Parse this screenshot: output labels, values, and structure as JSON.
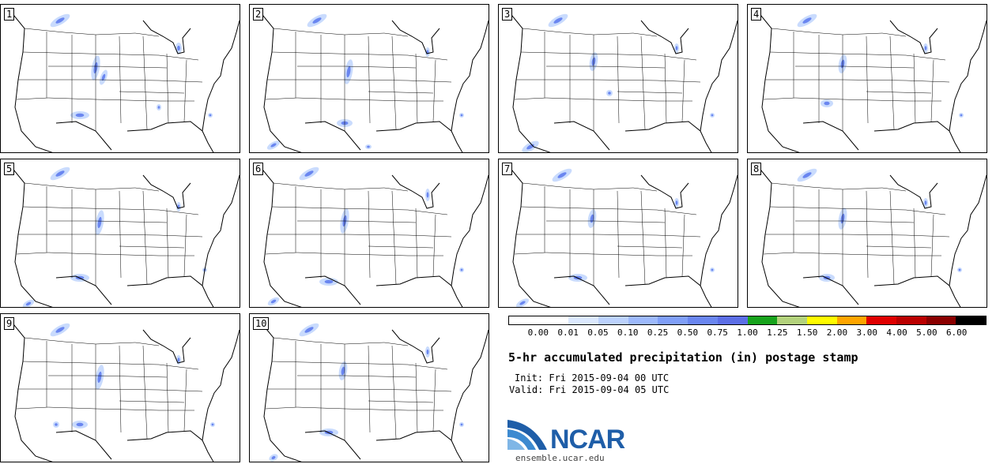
{
  "chart_data": {
    "type": "heatmap",
    "title": "5-hr accumulated precipitation (in) postage stamp",
    "init": "Fri 2015-09-04 00 UTC",
    "valid": "Fri 2015-09-04 05 UTC",
    "members": [
      "1",
      "2",
      "3",
      "4",
      "5",
      "6",
      "7",
      "8",
      "9",
      "10"
    ],
    "units": "in",
    "colorbar": {
      "ticks": [
        "0.00",
        "0.01",
        "0.05",
        "0.10",
        "0.25",
        "0.50",
        "0.75",
        "1.00",
        "1.25",
        "1.50",
        "2.00",
        "3.00",
        "4.00",
        "5.00",
        "6.00"
      ],
      "colors": [
        "#ffffff",
        "#ffffff",
        "#dce9fe",
        "#bcd2fd",
        "#9db9fc",
        "#809ff8",
        "#6a86f0",
        "#5c6ee6",
        "#17a31c",
        "#b3d27c",
        "#fffb00",
        "#ffa500",
        "#e00000",
        "#bb0000",
        "#8b0000",
        "#000000"
      ]
    }
  },
  "labels": {
    "init_prefix": "Init:",
    "valid_prefix": "Valid:",
    "logo": "NCAR",
    "site": "ensemble.ucar.edu"
  }
}
